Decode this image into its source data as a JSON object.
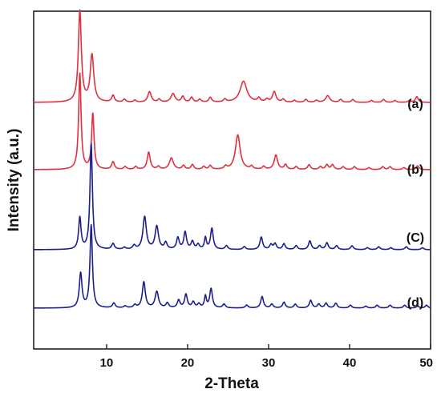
{
  "chart_data": {
    "type": "line",
    "title": "",
    "xlabel": "2-Theta",
    "ylabel": "Intensity (a.u.)",
    "xlim": [
      1,
      50
    ],
    "xticks": [
      10,
      20,
      30,
      40,
      50
    ],
    "yticks": [],
    "grid": false,
    "legend": "none",
    "series": [
      {
        "name": "(a)",
        "color": "#e03040",
        "baseline": 0.56,
        "peaks": [
          [
            6.7,
            9.5,
            0.22
          ],
          [
            8.2,
            4.9,
            0.26
          ],
          [
            10.8,
            0.7,
            0.2
          ],
          [
            12.2,
            0.3,
            0.2
          ],
          [
            13.5,
            0.2,
            0.2
          ],
          [
            15.3,
            1.1,
            0.25
          ],
          [
            16.5,
            0.3,
            0.2
          ],
          [
            18.2,
            0.9,
            0.3
          ],
          [
            19.4,
            0.6,
            0.2
          ],
          [
            20.5,
            0.5,
            0.2
          ],
          [
            21.5,
            0.3,
            0.2
          ],
          [
            22.8,
            0.5,
            0.2
          ],
          [
            24.6,
            0.3,
            0.2
          ],
          [
            26.9,
            2.2,
            0.5
          ],
          [
            28.8,
            0.4,
            0.2
          ],
          [
            29.8,
            0.3,
            0.2
          ],
          [
            30.7,
            1.1,
            0.25
          ],
          [
            31.8,
            0.3,
            0.2
          ],
          [
            33.2,
            0.2,
            0.2
          ],
          [
            34.6,
            0.3,
            0.2
          ],
          [
            35.9,
            0.2,
            0.2
          ],
          [
            37.3,
            0.7,
            0.3
          ],
          [
            38.9,
            0.3,
            0.2
          ],
          [
            40.4,
            0.3,
            0.2
          ],
          [
            42.7,
            0.2,
            0.2
          ],
          [
            44.2,
            0.3,
            0.2
          ],
          [
            45.6,
            0.2,
            0.2
          ],
          [
            47.4,
            0.2,
            0.2
          ],
          [
            48.3,
            0.6,
            0.2
          ]
        ]
      },
      {
        "name": "(b)",
        "color": "#e03040",
        "baseline": 1.02,
        "peaks": [
          [
            6.7,
            10.0,
            0.18
          ],
          [
            8.3,
            5.8,
            0.18
          ],
          [
            10.8,
            0.8,
            0.2
          ],
          [
            12.3,
            0.3,
            0.2
          ],
          [
            13.6,
            0.3,
            0.2
          ],
          [
            15.2,
            1.8,
            0.22
          ],
          [
            16.4,
            0.3,
            0.2
          ],
          [
            18.0,
            1.2,
            0.3
          ],
          [
            19.5,
            0.4,
            0.2
          ],
          [
            20.6,
            0.5,
            0.2
          ],
          [
            22.0,
            0.3,
            0.2
          ],
          [
            22.8,
            0.4,
            0.2
          ],
          [
            24.7,
            0.3,
            0.2
          ],
          [
            26.2,
            3.6,
            0.35
          ],
          [
            27.9,
            0.3,
            0.2
          ],
          [
            29.4,
            0.3,
            0.2
          ],
          [
            30.9,
            1.5,
            0.25
          ],
          [
            32.1,
            0.5,
            0.2
          ],
          [
            33.4,
            0.3,
            0.2
          ],
          [
            35.0,
            0.5,
            0.2
          ],
          [
            36.4,
            0.3,
            0.2
          ],
          [
            37.2,
            0.5,
            0.2
          ],
          [
            37.9,
            0.5,
            0.2
          ],
          [
            39.2,
            0.3,
            0.2
          ],
          [
            40.6,
            0.3,
            0.2
          ],
          [
            42.4,
            0.2,
            0.2
          ],
          [
            44.1,
            0.3,
            0.2
          ],
          [
            45.0,
            0.3,
            0.2
          ],
          [
            46.7,
            0.2,
            0.2
          ],
          [
            48.4,
            0.4,
            0.2
          ]
        ]
      },
      {
        "name": "(C)",
        "color": "#1a1f8c",
        "baseline": 0.48,
        "peaks": [
          [
            6.7,
            3.3,
            0.18
          ],
          [
            8.1,
            11.0,
            0.18
          ],
          [
            10.8,
            0.6,
            0.2
          ],
          [
            12.2,
            0.2,
            0.2
          ],
          [
            13.4,
            0.4,
            0.2
          ],
          [
            14.7,
            3.4,
            0.25
          ],
          [
            16.2,
            2.4,
            0.25
          ],
          [
            17.3,
            0.7,
            0.2
          ],
          [
            18.8,
            1.2,
            0.2
          ],
          [
            19.7,
            1.8,
            0.2
          ],
          [
            20.6,
            0.8,
            0.2
          ],
          [
            21.3,
            0.5,
            0.2
          ],
          [
            22.2,
            1.2,
            0.15
          ],
          [
            23.0,
            2.2,
            0.2
          ],
          [
            24.8,
            0.4,
            0.2
          ],
          [
            27.0,
            0.3,
            0.2
          ],
          [
            29.1,
            1.3,
            0.2
          ],
          [
            30.3,
            0.5,
            0.2
          ],
          [
            30.8,
            0.6,
            0.2
          ],
          [
            31.9,
            0.6,
            0.2
          ],
          [
            33.4,
            0.4,
            0.2
          ],
          [
            35.1,
            0.9,
            0.2
          ],
          [
            36.3,
            0.4,
            0.2
          ],
          [
            37.2,
            0.7,
            0.2
          ],
          [
            38.4,
            0.4,
            0.2
          ],
          [
            40.3,
            0.4,
            0.2
          ],
          [
            42.2,
            0.2,
            0.2
          ],
          [
            43.6,
            0.3,
            0.2
          ],
          [
            45.1,
            0.2,
            0.2
          ],
          [
            47.0,
            0.3,
            0.2
          ],
          [
            49.0,
            0.2,
            0.2
          ]
        ]
      },
      {
        "name": "(d)",
        "color": "#1a1f8c",
        "baseline": 0.45,
        "peaks": [
          [
            6.8,
            3.6,
            0.2
          ],
          [
            8.1,
            8.6,
            0.18
          ],
          [
            10.9,
            0.5,
            0.2
          ],
          [
            12.3,
            0.2,
            0.2
          ],
          [
            13.5,
            0.3,
            0.2
          ],
          [
            14.6,
            2.7,
            0.22
          ],
          [
            16.2,
            1.7,
            0.25
          ],
          [
            17.5,
            0.5,
            0.2
          ],
          [
            18.9,
            0.8,
            0.2
          ],
          [
            19.8,
            1.4,
            0.2
          ],
          [
            20.7,
            0.6,
            0.2
          ],
          [
            21.4,
            0.4,
            0.2
          ],
          [
            22.2,
            1.2,
            0.15
          ],
          [
            22.9,
            2.0,
            0.2
          ],
          [
            24.5,
            0.4,
            0.2
          ],
          [
            27.3,
            0.3,
            0.2
          ],
          [
            29.2,
            1.2,
            0.2
          ],
          [
            30.4,
            0.4,
            0.2
          ],
          [
            31.9,
            0.6,
            0.2
          ],
          [
            33.3,
            0.4,
            0.2
          ],
          [
            35.2,
            0.8,
            0.2
          ],
          [
            36.2,
            0.4,
            0.2
          ],
          [
            37.1,
            0.5,
            0.2
          ],
          [
            38.3,
            0.5,
            0.2
          ],
          [
            40.1,
            0.3,
            0.2
          ],
          [
            42.0,
            0.2,
            0.2
          ],
          [
            43.4,
            0.3,
            0.2
          ],
          [
            45.0,
            0.3,
            0.2
          ],
          [
            46.8,
            0.3,
            0.2
          ],
          [
            48.4,
            0.2,
            0.2
          ],
          [
            49.5,
            0.3,
            0.2
          ]
        ]
      }
    ]
  }
}
